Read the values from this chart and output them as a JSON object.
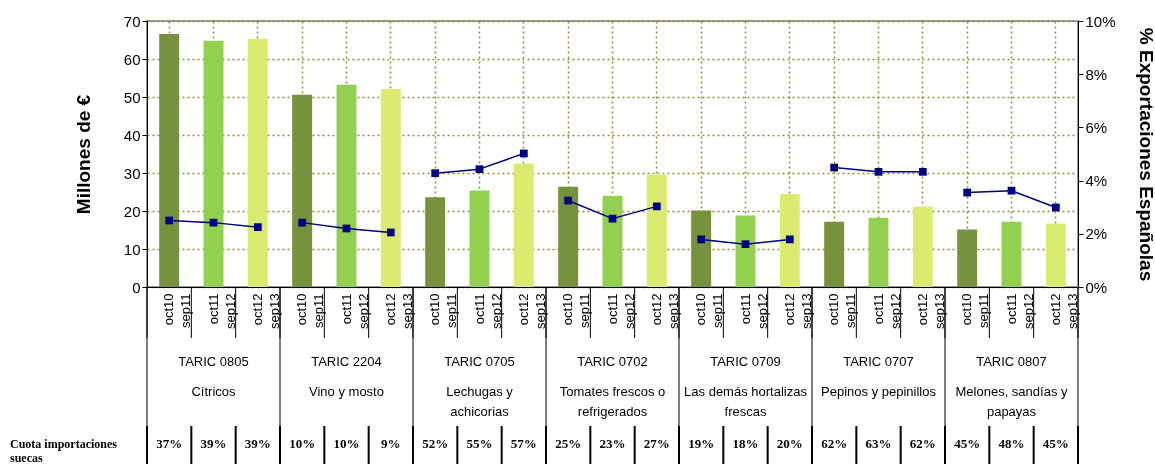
{
  "chart_data": {
    "type": "bar",
    "ylabel": "Millones de €",
    "y2label": "% Exportaciones Españolas",
    "categories": [
      "oct10 sep11",
      "oct11 sep12",
      "oct12 sep13",
      "oct10 sep11",
      "oct11 sep12",
      "oct12 sep13",
      "oct10 sep11",
      "oct11 sep12",
      "oct12 sep13",
      "oct10 sep11",
      "oct11 sep12",
      "oct12 sep13",
      "oct10 sep11",
      "oct11 sep12",
      "oct12 sep13",
      "oct10 sep11",
      "oct11 sep12",
      "oct12 sep13",
      "oct10 sep11",
      "oct11 sep12",
      "oct12 sep13"
    ],
    "series": [
      {
        "colors": [
          "#76923c",
          "#92d050",
          "#dbeb70",
          "#76923c",
          "#92d050",
          "#dbeb70",
          "#76923c",
          "#92d050",
          "#dbeb70",
          "#76923c",
          "#92d050",
          "#dbeb70",
          "#76923c",
          "#92d050",
          "#dbeb70",
          "#76923c",
          "#92d050",
          "#dbeb70",
          "#76923c",
          "#92d050",
          "#dbeb70"
        ],
        "values": [
          66.6,
          64.8,
          65.3,
          50.6,
          53.2,
          52.1,
          23.6,
          25.4,
          32.5,
          26.4,
          24.0,
          29.5,
          20.1,
          18.8,
          24.5,
          17.2,
          18.2,
          21.1,
          15.1,
          17.2,
          16.7
        ]
      },
      {
        "type": "line",
        "axis": "y2",
        "color": "#000080",
        "values": [
          2.5,
          2.42,
          2.25,
          2.42,
          2.2,
          2.05,
          4.28,
          4.43,
          5.02,
          3.25,
          2.57,
          3.03,
          1.79,
          1.61,
          1.79,
          4.49,
          4.33,
          4.33,
          3.55,
          3.62,
          2.99
        ]
      }
    ],
    "ylim": [
      0,
      70
    ],
    "yticks": [
      0,
      10,
      20,
      30,
      40,
      50,
      60,
      70
    ],
    "y2lim": [
      0,
      10
    ],
    "y2ticks": [
      {
        "value": 0,
        "label": "0%"
      },
      {
        "value": 2,
        "label": "2%"
      },
      {
        "value": 4,
        "label": "4%"
      },
      {
        "value": 6,
        "label": "6%"
      },
      {
        "value": 8,
        "label": "8%"
      },
      {
        "value": 10,
        "label": "10%"
      }
    ],
    "grid": true,
    "marker": "square",
    "annotations": [
      "TARIC 0805",
      "TARIC 2204",
      "TARIC 0705",
      "TARIC 0702",
      "TARIC 0709",
      "TARIC 0707",
      "TARIC 0807",
      "Cítricos",
      "Vino y mosto",
      "Lechugas y achicorias",
      "Tomates frescos o refrigerados",
      "Las demás hortalizas frescas",
      "Pepinos y pepinillos",
      "Melones, sandías y papayas",
      "Cuota importaciones suecas",
      "37%",
      "39%",
      "39%",
      "10%",
      "10%",
      "9%",
      "52%",
      "55%",
      "57%",
      "25%",
      "23%",
      "27%",
      "19%",
      "18%",
      "20%",
      "62%",
      "63%",
      "62%",
      "45%",
      "48%",
      "45%"
    ]
  }
}
